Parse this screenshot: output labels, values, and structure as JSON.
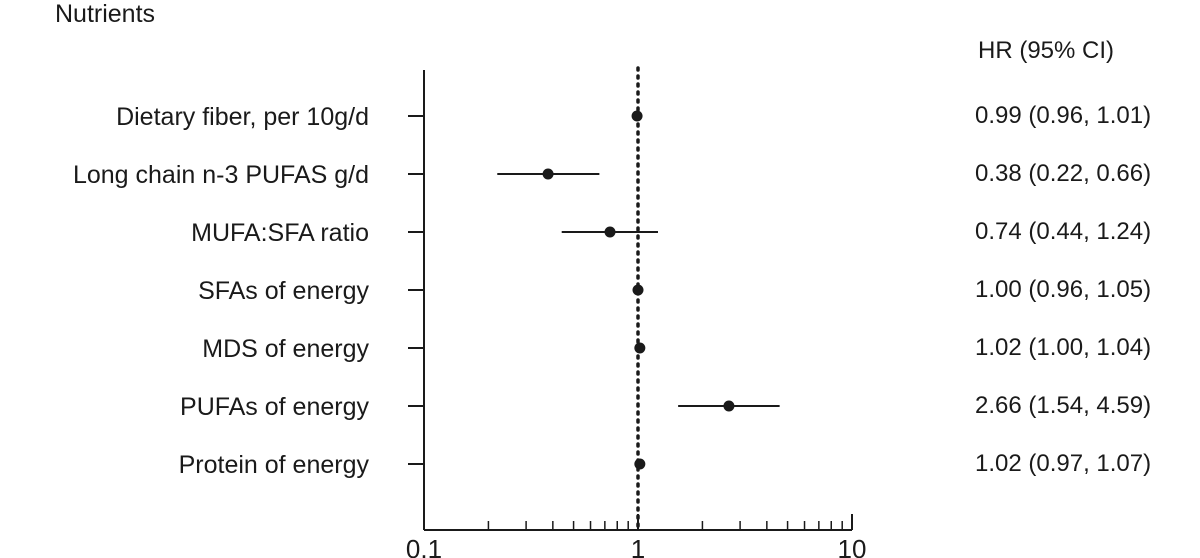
{
  "chart_data": {
    "type": "forest",
    "title": "Nutrients",
    "right_column_header": "HR (95% CI)",
    "x_scale": "log",
    "xlim": [
      0.1,
      10
    ],
    "reference_line": 1,
    "xticks": [
      0.1,
      1,
      10
    ],
    "xtick_labels": [
      "0.1",
      "1",
      "10"
    ],
    "rows": [
      {
        "label": "Dietary fiber, per 10g/d",
        "hr": 0.99,
        "lower": 0.96,
        "upper": 1.01,
        "text": "0.99 (0.96, 1.01)"
      },
      {
        "label": "Long chain n-3 PUFAS g/d",
        "hr": 0.38,
        "lower": 0.22,
        "upper": 0.66,
        "text": "0.38 (0.22, 0.66)"
      },
      {
        "label": "MUFA:SFA ratio",
        "hr": 0.74,
        "lower": 0.44,
        "upper": 1.24,
        "text": "0.74 (0.44, 1.24)"
      },
      {
        "label": "SFAs of energy",
        "hr": 1.0,
        "lower": 0.96,
        "upper": 1.05,
        "text": "1.00 (0.96, 1.05)"
      },
      {
        "label": "MDS of energy",
        "hr": 1.02,
        "lower": 1.0,
        "upper": 1.04,
        "text": "1.02 (1.00, 1.04)"
      },
      {
        "label": "PUFAs of energy",
        "hr": 2.66,
        "lower": 1.54,
        "upper": 4.59,
        "text": "2.66 (1.54, 4.59)"
      },
      {
        "label": "Protein of energy",
        "hr": 1.02,
        "lower": 0.97,
        "upper": 1.07,
        "text": "1.02 (0.97, 1.07)"
      }
    ]
  }
}
